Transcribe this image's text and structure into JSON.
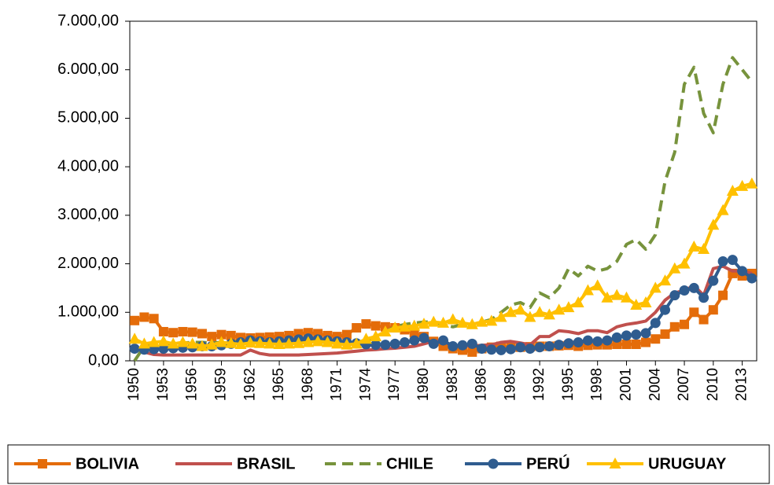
{
  "chart_data": {
    "type": "line",
    "x": [
      1950,
      1951,
      1952,
      1953,
      1954,
      1955,
      1956,
      1957,
      1958,
      1959,
      1960,
      1961,
      1962,
      1963,
      1964,
      1965,
      1966,
      1967,
      1968,
      1969,
      1970,
      1971,
      1972,
      1973,
      1974,
      1975,
      1976,
      1977,
      1978,
      1979,
      1980,
      1981,
      1982,
      1983,
      1984,
      1985,
      1986,
      1987,
      1988,
      1989,
      1990,
      1991,
      1992,
      1993,
      1994,
      1995,
      1996,
      1997,
      1998,
      1999,
      2000,
      2001,
      2002,
      2003,
      2004,
      2005,
      2006,
      2007,
      2008,
      2009,
      2010,
      2011,
      2012,
      2013,
      2014
    ],
    "xlim": [
      1950,
      2014
    ],
    "xticks": [
      1950,
      1953,
      1956,
      1959,
      1962,
      1965,
      1968,
      1971,
      1974,
      1977,
      1980,
      1983,
      1986,
      1989,
      1992,
      1995,
      1998,
      2001,
      2004,
      2007,
      2010,
      2013
    ],
    "ylim": [
      0,
      7000
    ],
    "yticks": [
      {
        "value": 0,
        "label": "0,00"
      },
      {
        "value": 1000,
        "label": "1.000,00"
      },
      {
        "value": 2000,
        "label": "2.000,00"
      },
      {
        "value": 3000,
        "label": "3.000,00"
      },
      {
        "value": 4000,
        "label": "4.000,00"
      },
      {
        "value": 5000,
        "label": "5.000,00"
      },
      {
        "value": 6000,
        "label": "6.000,00"
      },
      {
        "value": 7000,
        "label": "7.000,00"
      }
    ],
    "legend": "bottom",
    "series": [
      {
        "name": "BOLIVIA",
        "color": "#E46C0A",
        "marker": "square",
        "style": "solid",
        "values": [
          830,
          900,
          870,
          600,
          580,
          600,
          590,
          560,
          500,
          540,
          520,
          480,
          470,
          480,
          490,
          500,
          520,
          560,
          580,
          560,
          520,
          500,
          540,
          680,
          760,
          720,
          700,
          680,
          640,
          580,
          500,
          400,
          300,
          250,
          220,
          180,
          250,
          280,
          300,
          280,
          280,
          290,
          300,
          300,
          310,
          320,
          300,
          320,
          330,
          330,
          340,
          340,
          340,
          380,
          450,
          550,
          700,
          750,
          1000,
          850,
          1050,
          1350,
          1800,
          1750,
          1800
        ]
      },
      {
        "name": "BRASIL",
        "color": "#C0504D",
        "marker": "none",
        "style": "solid",
        "values": [
          250,
          180,
          130,
          120,
          120,
          120,
          120,
          120,
          120,
          120,
          120,
          120,
          220,
          150,
          120,
          120,
          120,
          120,
          130,
          140,
          150,
          160,
          180,
          200,
          220,
          230,
          250,
          260,
          280,
          300,
          350,
          400,
          420,
          300,
          320,
          300,
          320,
          330,
          380,
          400,
          370,
          330,
          500,
          500,
          620,
          600,
          560,
          620,
          620,
          580,
          700,
          750,
          780,
          820,
          1000,
          1250,
          1400,
          1450,
          1550,
          1350,
          1900,
          1950,
          1850,
          1850,
          1800
        ]
      },
      {
        "name": "CHILE",
        "color": "#77933C",
        "marker": "none",
        "style": "dashed",
        "values": [
          0,
          300,
          350,
          350,
          360,
          370,
          380,
          380,
          370,
          380,
          390,
          400,
          400,
          390,
          380,
          380,
          390,
          400,
          400,
          390,
          380,
          370,
          370,
          380,
          420,
          500,
          600,
          700,
          750,
          780,
          800,
          800,
          750,
          700,
          750,
          750,
          800,
          850,
          1000,
          1150,
          1200,
          1100,
          1400,
          1300,
          1500,
          1900,
          1750,
          1950,
          1850,
          1900,
          2050,
          2400,
          2500,
          2300,
          2600,
          3700,
          4300,
          5700,
          6050,
          5100,
          4700,
          5700,
          6250,
          6000,
          5750
        ]
      },
      {
        "name": "PERÚ",
        "color": "#2F5C8F",
        "marker": "circle",
        "style": "solid",
        "values": [
          250,
          230,
          240,
          250,
          260,
          270,
          280,
          300,
          300,
          320,
          350,
          380,
          420,
          400,
          380,
          400,
          420,
          440,
          460,
          440,
          420,
          400,
          380,
          360,
          340,
          330,
          330,
          350,
          380,
          420,
          470,
          350,
          420,
          300,
          320,
          350,
          250,
          230,
          220,
          240,
          280,
          250,
          280,
          300,
          330,
          360,
          380,
          420,
          400,
          420,
          480,
          520,
          540,
          570,
          780,
          1050,
          1350,
          1450,
          1500,
          1300,
          1650,
          2050,
          2080,
          1850,
          1700
        ]
      },
      {
        "name": "URUGUAY",
        "color": "#FFC000",
        "marker": "triangle",
        "style": "solid",
        "values": [
          450,
          350,
          380,
          400,
          350,
          380,
          350,
          300,
          330,
          380,
          360,
          340,
          370,
          360,
          350,
          340,
          350,
          360,
          380,
          400,
          380,
          350,
          330,
          350,
          450,
          500,
          600,
          680,
          700,
          720,
          760,
          800,
          780,
          850,
          780,
          750,
          800,
          820,
          900,
          1000,
          1050,
          900,
          1000,
          950,
          1050,
          1100,
          1200,
          1450,
          1550,
          1300,
          1350,
          1300,
          1150,
          1200,
          1500,
          1650,
          1900,
          2000,
          2350,
          2300,
          2800,
          3100,
          3500,
          3600,
          3650
        ]
      }
    ]
  }
}
